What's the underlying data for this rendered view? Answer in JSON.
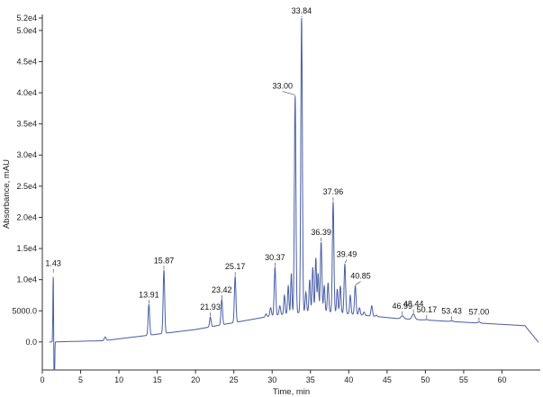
{
  "chart_data": {
    "type": "line",
    "title": "",
    "xlabel": "Time, min",
    "ylabel": "Absorbance, mAU",
    "xlim": [
      0,
      65
    ],
    "ylim": [
      -4500,
      52000
    ],
    "x_ticks": [
      {
        "value": 0,
        "label": "0"
      },
      {
        "value": 5,
        "label": "5"
      },
      {
        "value": 10,
        "label": "10"
      },
      {
        "value": 15,
        "label": "15"
      },
      {
        "value": 20,
        "label": "20"
      },
      {
        "value": 25,
        "label": "25"
      },
      {
        "value": 30,
        "label": "30"
      },
      {
        "value": 35,
        "label": "35"
      },
      {
        "value": 40,
        "label": "40"
      },
      {
        "value": 45,
        "label": "45"
      },
      {
        "value": 50,
        "label": "50"
      },
      {
        "value": 55,
        "label": "55"
      },
      {
        "value": 60,
        "label": "60"
      }
    ],
    "y_ticks": [
      {
        "value": 0,
        "label": "0.0"
      },
      {
        "value": 5000,
        "label": "5000.0"
      },
      {
        "value": 10000,
        "label": "1.0e4"
      },
      {
        "value": 15000,
        "label": "1.5e4"
      },
      {
        "value": 20000,
        "label": "2.0e4"
      },
      {
        "value": 25000,
        "label": "2.5e4"
      },
      {
        "value": 30000,
        "label": "3.0e4"
      },
      {
        "value": 35000,
        "label": "3.5e4"
      },
      {
        "value": 40000,
        "label": "4.0e4"
      },
      {
        "value": 45000,
        "label": "4.5e4"
      },
      {
        "value": 50000,
        "label": "5.0e4"
      },
      {
        "value": 52000,
        "label": "5.2e4"
      }
    ],
    "grid": false,
    "line_color": "#4a5fa6",
    "peaks": [
      {
        "rt": 1.43,
        "height": 11000,
        "label": "1.43"
      },
      {
        "rt": 13.91,
        "height": 6000,
        "label": "13.91"
      },
      {
        "rt": 15.87,
        "height": 11500,
        "label": "15.87"
      },
      {
        "rt": 21.93,
        "height": 4000,
        "label": "21.93"
      },
      {
        "rt": 23.42,
        "height": 6800,
        "label": "23.42"
      },
      {
        "rt": 25.17,
        "height": 10500,
        "label": "25.17"
      },
      {
        "rt": 30.37,
        "height": 12000,
        "label": "30.37"
      },
      {
        "rt": 33.0,
        "height": 39500,
        "label": "33.00"
      },
      {
        "rt": 33.84,
        "height": 52000,
        "label": "33.84"
      },
      {
        "rt": 36.39,
        "height": 16000,
        "label": "36.39"
      },
      {
        "rt": 37.96,
        "height": 22500,
        "label": "37.96"
      },
      {
        "rt": 39.49,
        "height": 12500,
        "label": "39.49"
      },
      {
        "rt": 40.85,
        "height": 9000,
        "label": "40.85"
      },
      {
        "rt": 46.99,
        "height": 4200,
        "label": "46.99"
      },
      {
        "rt": 48.44,
        "height": 4500,
        "label": "48.44"
      },
      {
        "rt": 50.17,
        "height": 3600,
        "label": "50.17"
      },
      {
        "rt": 53.43,
        "height": 3400,
        "label": "53.43"
      },
      {
        "rt": 57.0,
        "height": 3200,
        "label": "57.00"
      }
    ]
  }
}
